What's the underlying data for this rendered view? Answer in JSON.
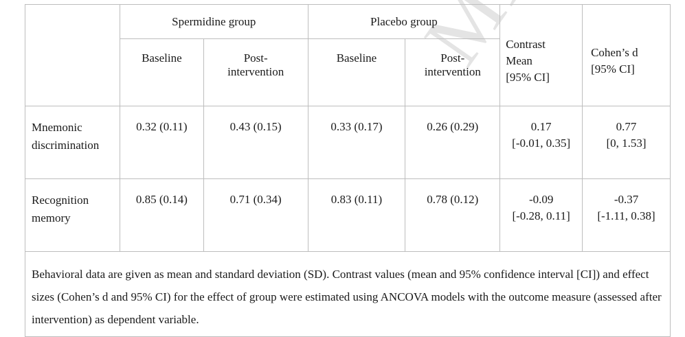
{
  "watermark": "MANUSCRIPT",
  "header": {
    "spermidine_group": "Spermidine group",
    "placebo_group": "Placebo group",
    "contrast_line1": "Contrast",
    "contrast_line2": "Mean",
    "contrast_line3": "[95% CI]",
    "cohen_line1": "Cohen’s d",
    "cohen_line2": "[95% CI]",
    "baseline": "Baseline",
    "post_line1": "Post-",
    "post_line2": "intervention"
  },
  "rows": [
    {
      "label_line1": "Mnemonic",
      "label_line2": "discrimination",
      "sp_baseline": "0.32 (0.11)",
      "sp_post": "0.43 (0.15)",
      "pl_baseline": "0.33 (0.17)",
      "pl_post": "0.26 (0.29)",
      "contrast_mean": "0.17",
      "contrast_ci": "[-0.01, 0.35]",
      "cohen_d": "0.77",
      "cohen_ci": "[0, 1.53]"
    },
    {
      "label_line1": "Recognition",
      "label_line2": "memory",
      "sp_baseline": "0.85 (0.14)",
      "sp_post": "0.71 (0.34)",
      "pl_baseline": "0.83 (0.11)",
      "pl_post": "0.78 (0.12)",
      "contrast_mean": "-0.09",
      "contrast_ci": "[-0.28, 0.11]",
      "cohen_d": "-0.37",
      "cohen_ci": "[-1.11, 0.38]"
    }
  ],
  "footnote": "Behavioral data are given as mean and standard deviation (SD). Contrast values (mean and 95% confidence interval [CI]) and effect sizes (Cohen’s d and 95% CI) for the effect of group were estimated using ANCOVA models with the outcome measure (assessed after intervention) as dependent variable."
}
